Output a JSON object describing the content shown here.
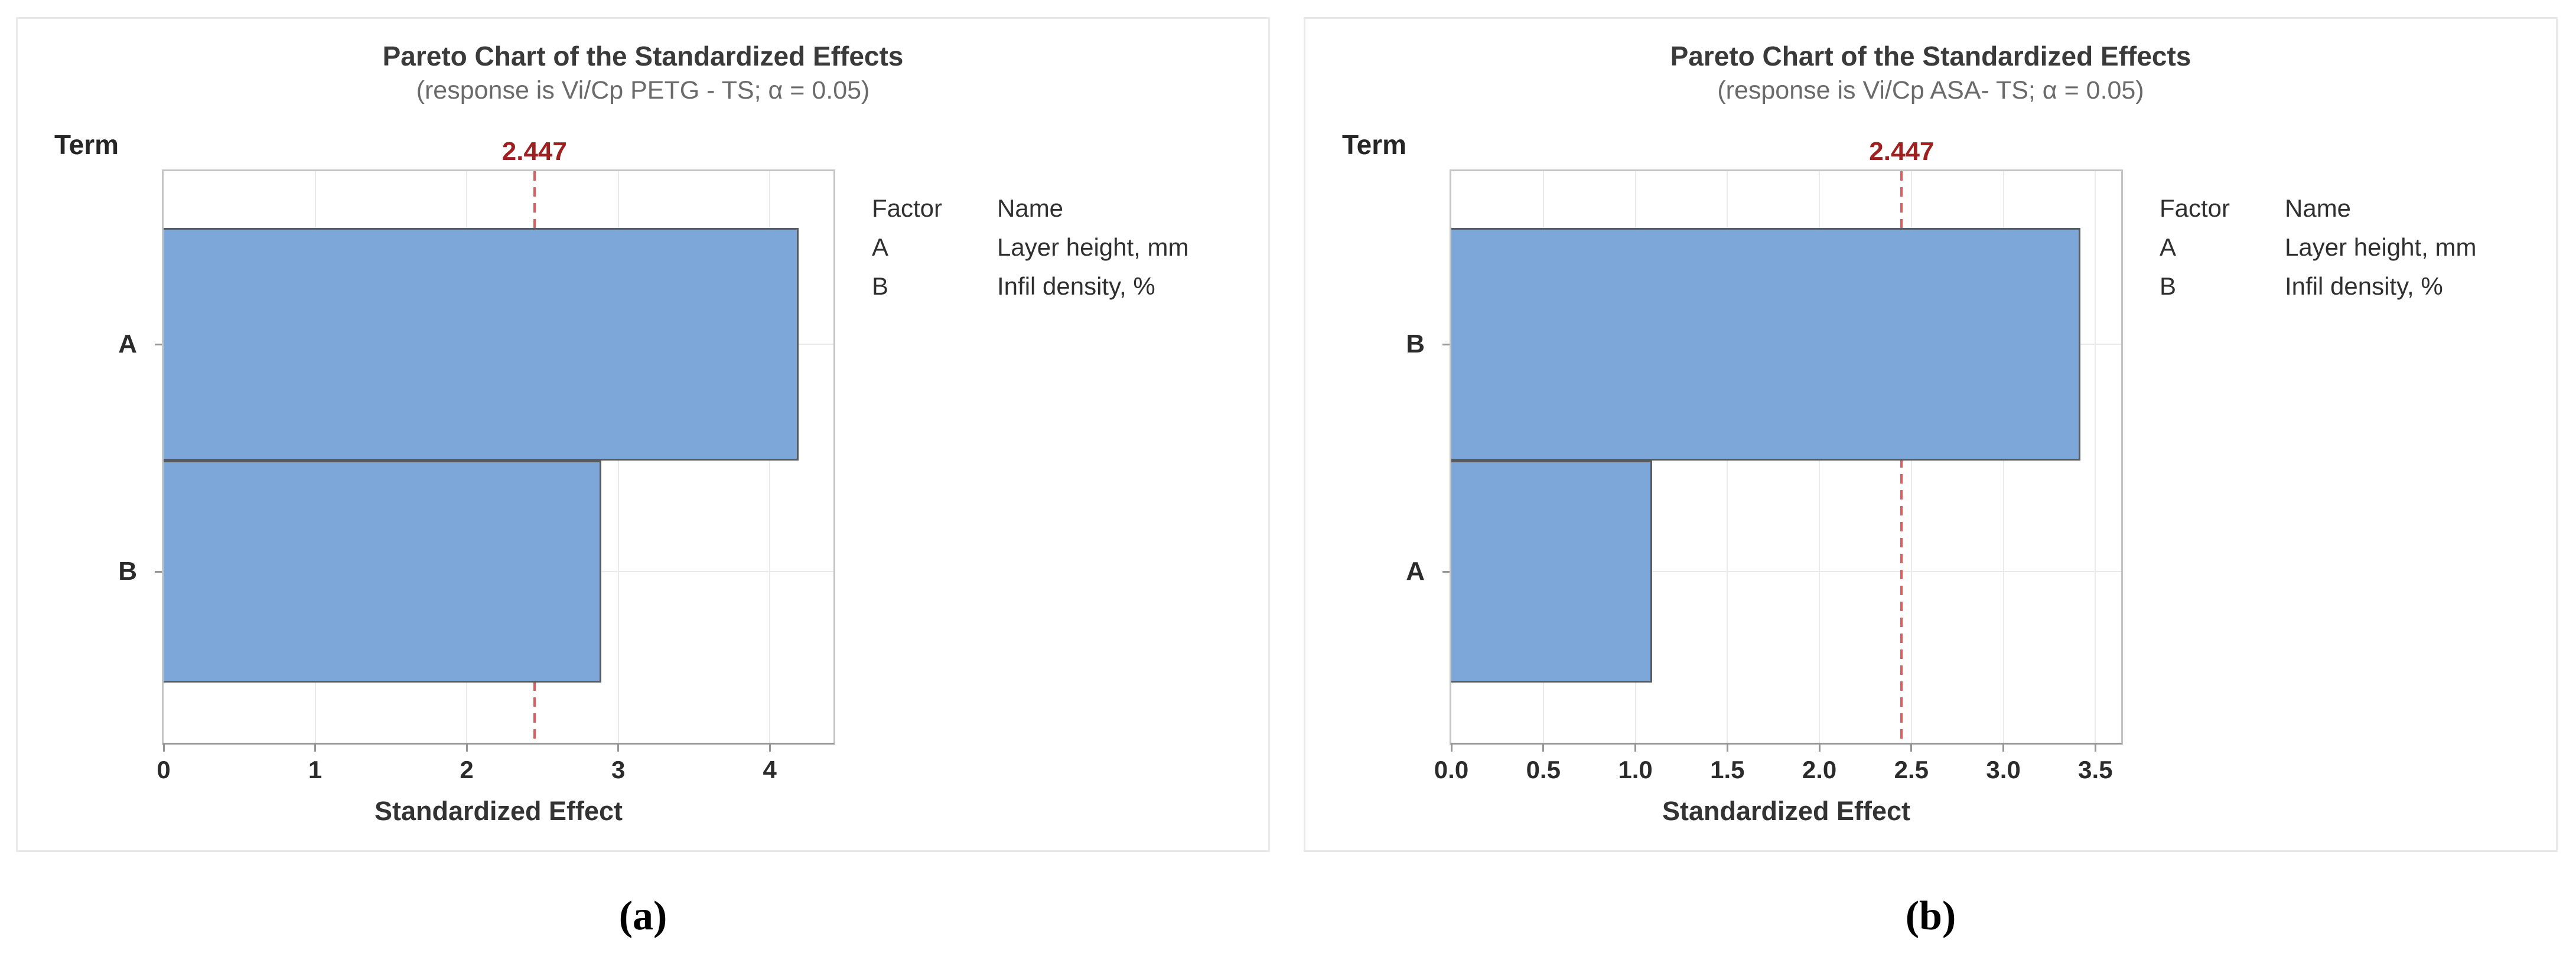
{
  "colors": {
    "bar_fill": "#7CA7D8",
    "bar_border": "#555B60",
    "reference_line": "#E05C5C",
    "reference_label": "#9E2020",
    "title_text": "#3A3A3A",
    "subtitle_text": "#6A6A6A",
    "gridline": "#EAEAEA",
    "plot_border": "#C4C4C4",
    "axis_line": "#969696",
    "panel_border": "#E9E9E9"
  },
  "chart_data": [
    {
      "type": "bar",
      "orientation": "horizontal",
      "title": "Pareto Chart of the Standardized Effects",
      "subtitle": "(response is Vi/Cp PETG - TS; α = 0.05)",
      "y_axis_title": "Term",
      "xlabel": "Standardized Effect",
      "categories": [
        "A",
        "B"
      ],
      "values": [
        4.19,
        2.89
      ],
      "xlim": [
        0,
        4.42
      ],
      "x_ticks": [
        {
          "value": 0,
          "label": "0"
        },
        {
          "value": 1,
          "label": "1"
        },
        {
          "value": 2,
          "label": "2"
        },
        {
          "value": 3,
          "label": "3"
        },
        {
          "value": 4,
          "label": "4"
        }
      ],
      "reference_line": {
        "value": 2.447,
        "label": "2.447"
      },
      "grid": true,
      "legend_position": "right",
      "legend": {
        "headers": [
          "Factor",
          "Name"
        ],
        "rows": [
          {
            "factor": "A",
            "name": "Layer height, mm"
          },
          {
            "factor": "B",
            "name": "Infil density, %"
          }
        ]
      },
      "caption": "(a)"
    },
    {
      "type": "bar",
      "orientation": "horizontal",
      "title": "Pareto Chart of the Standardized Effects",
      "subtitle": "(response is Vi/Cp ASA- TS; α = 0.05)",
      "y_axis_title": "Term",
      "xlabel": "Standardized Effect",
      "categories": [
        "B",
        "A"
      ],
      "values": [
        3.42,
        1.09
      ],
      "xlim": [
        0,
        3.64
      ],
      "x_ticks": [
        {
          "value": 0,
          "label": "0.0"
        },
        {
          "value": 0.5,
          "label": "0.5"
        },
        {
          "value": 1,
          "label": "1.0"
        },
        {
          "value": 1.5,
          "label": "1.5"
        },
        {
          "value": 2,
          "label": "2.0"
        },
        {
          "value": 2.5,
          "label": "2.5"
        },
        {
          "value": 3,
          "label": "3.0"
        },
        {
          "value": 3.5,
          "label": "3.5"
        }
      ],
      "reference_line": {
        "value": 2.447,
        "label": "2.447"
      },
      "grid": true,
      "legend_position": "right",
      "legend": {
        "headers": [
          "Factor",
          "Name"
        ],
        "rows": [
          {
            "factor": "A",
            "name": "Layer height, mm"
          },
          {
            "factor": "B",
            "name": "Infil density, %"
          }
        ]
      },
      "caption": "(b)"
    }
  ]
}
